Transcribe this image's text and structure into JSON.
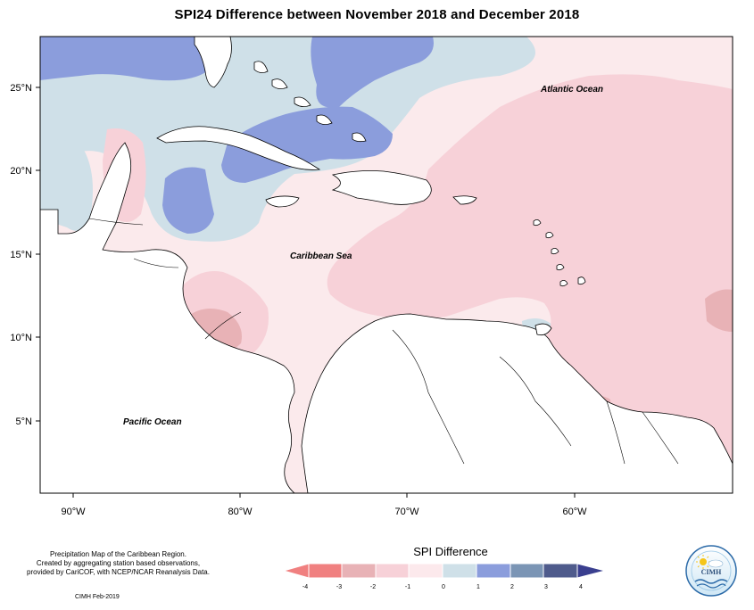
{
  "title": "SPI24 Difference between November 2018 and December 2018",
  "map": {
    "ocean_labels": {
      "atlantic": "Atlantic Ocean",
      "caribbean": "Caribbean Sea",
      "pacific": "Pacific Ocean"
    },
    "lat_ticks": [
      "25°N",
      "20°N",
      "15°N",
      "10°N",
      "5°N"
    ],
    "lon_ticks": [
      "90°W",
      "80°W",
      "70°W",
      "60°W"
    ],
    "extent": {
      "lon": [
        -92,
        -51
      ],
      "lat": [
        1.5,
        28.8
      ]
    }
  },
  "legend": {
    "title": "SPI Difference",
    "tick_labels": [
      "-4",
      "-3",
      "-2",
      "-1",
      "0",
      "1",
      "2",
      "3",
      "4"
    ],
    "colors": [
      "#f08080",
      "#e8b2b6",
      "#f7d1d8",
      "#fce9ec",
      "#cfe0e8",
      "#8b9ddc",
      "#7b95b5",
      "#4f5b8c",
      "#3a3f8f"
    ]
  },
  "footer": {
    "description": [
      "Precipitation Map of the Caribbean Region.",
      "Created by aggregating station based observations,",
      "provided by CariCOF, with NCEP/NCAR Reanalysis Data."
    ],
    "credit": "CIMH Feb-2019"
  },
  "logo": {
    "text": "CIMH"
  }
}
